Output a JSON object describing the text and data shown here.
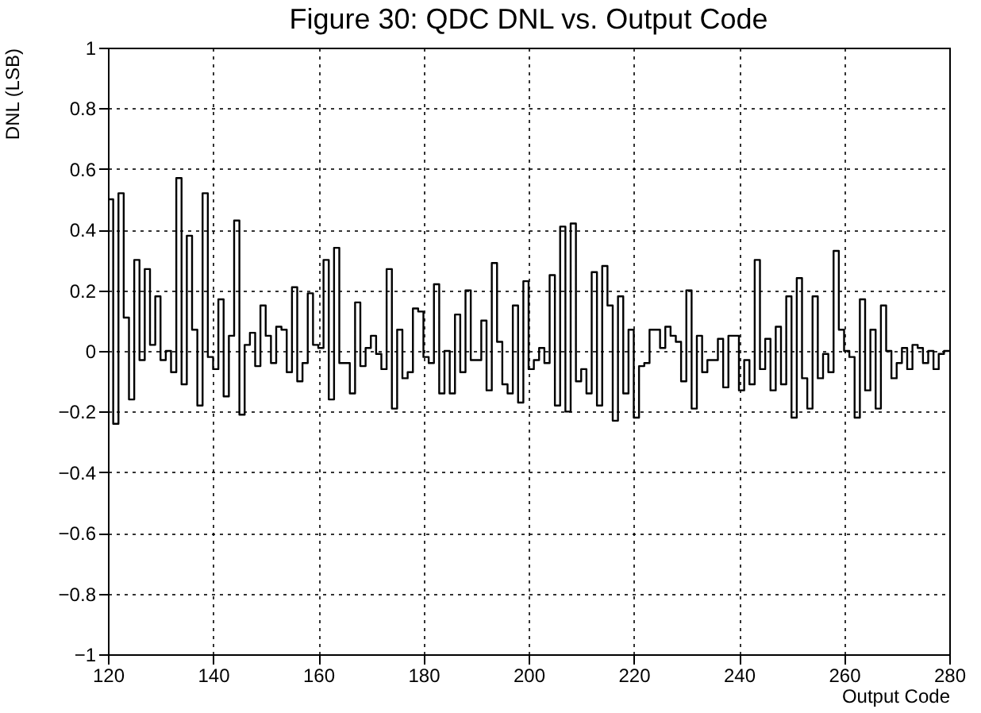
{
  "chart_data": {
    "type": "histogram",
    "title": "Figure 30: QDC DNL vs. Output Code",
    "xlabel": "Output Code",
    "ylabel": "DNL (LSB)",
    "bins": [
      120,
      121,
      122,
      123,
      124,
      125,
      126,
      127,
      128,
      129,
      130,
      131,
      132,
      133,
      134,
      135,
      136,
      137,
      138,
      139,
      140,
      141,
      142,
      143,
      144,
      145,
      146,
      147,
      148,
      149,
      150,
      151,
      152,
      153,
      154,
      155,
      156,
      157,
      158,
      159,
      160,
      161,
      162,
      163,
      164,
      165,
      166,
      167,
      168,
      169,
      170,
      171,
      172,
      173,
      174,
      175,
      176,
      177,
      178,
      179,
      180,
      181,
      182,
      183,
      184,
      185,
      186,
      187,
      188,
      189,
      190,
      191,
      192,
      193,
      194,
      195,
      196,
      197,
      198,
      199,
      200,
      201,
      202,
      203,
      204,
      205,
      206,
      207,
      208,
      209,
      210,
      211,
      212,
      213,
      214,
      215,
      216,
      217,
      218,
      219,
      220,
      221,
      222,
      223,
      224,
      225,
      226,
      227,
      228,
      229,
      230,
      231,
      232,
      233,
      234,
      235,
      236,
      237,
      238,
      239,
      240,
      241,
      242,
      243,
      244,
      245,
      246,
      247,
      248,
      249,
      250,
      251,
      252,
      253,
      254,
      255,
      256,
      257,
      258,
      259,
      260,
      261,
      262,
      263,
      264,
      265,
      266,
      267,
      268,
      269,
      270,
      271,
      272,
      273,
      274,
      275,
      276,
      277,
      278,
      279,
      280
    ],
    "values": [
      0.5,
      -0.24,
      0.52,
      0.11,
      -0.16,
      0.3,
      -0.03,
      0.27,
      0.02,
      0.18,
      -0.03,
      0.0,
      -0.07,
      0.57,
      -0.11,
      0.38,
      0.07,
      -0.18,
      0.52,
      -0.02,
      -0.06,
      0.17,
      -0.15,
      0.05,
      0.43,
      -0.21,
      0.02,
      0.06,
      -0.05,
      0.15,
      0.05,
      -0.04,
      0.08,
      0.07,
      -0.07,
      0.21,
      -0.1,
      -0.04,
      0.19,
      0.02,
      0.01,
      0.3,
      -0.16,
      0.34,
      -0.04,
      -0.04,
      -0.14,
      0.16,
      -0.05,
      0.01,
      0.05,
      -0.01,
      -0.06,
      0.27,
      -0.19,
      0.07,
      -0.09,
      -0.07,
      0.14,
      0.13,
      -0.02,
      -0.04,
      0.22,
      -0.14,
      0.0,
      -0.14,
      0.12,
      -0.07,
      0.2,
      -0.03,
      -0.03,
      0.1,
      -0.13,
      0.29,
      0.03,
      -0.11,
      -0.14,
      0.15,
      -0.17,
      0.23,
      -0.06,
      -0.03,
      0.01,
      -0.04,
      0.25,
      -0.18,
      0.41,
      -0.2,
      0.42,
      -0.1,
      -0.06,
      -0.14,
      0.26,
      -0.18,
      0.28,
      0.15,
      -0.23,
      0.18,
      -0.14,
      0.07,
      -0.22,
      -0.05,
      -0.04,
      0.07,
      0.07,
      0.01,
      0.08,
      0.05,
      0.03,
      -0.1,
      0.2,
      -0.19,
      0.05,
      -0.07,
      -0.03,
      -0.03,
      0.04,
      -0.12,
      0.05,
      0.05,
      -0.13,
      -0.03,
      -0.11,
      0.3,
      -0.06,
      0.04,
      -0.13,
      0.08,
      -0.11,
      0.18,
      -0.22,
      0.24,
      -0.09,
      -0.19,
      0.18,
      -0.09,
      -0.01,
      -0.07,
      0.33,
      0.07,
      0.0,
      -0.02,
      -0.22,
      0.17,
      -0.13,
      0.07,
      -0.19,
      0.15,
      0.0,
      -0.09,
      -0.04,
      0.01,
      -0.06,
      0.02,
      0.01,
      -0.04,
      0.0,
      -0.06,
      -0.01,
      0.0
    ],
    "color": "#000000",
    "xlim": [
      120,
      280
    ],
    "xticks": [
      120,
      140,
      160,
      180,
      200,
      220,
      240,
      260,
      280
    ],
    "ylim": [
      -1,
      1
    ],
    "yticks": [
      -1,
      -0.8,
      -0.6,
      -0.4,
      -0.2,
      0,
      0.2,
      0.4,
      0.6,
      0.8,
      1
    ],
    "grid": true
  }
}
